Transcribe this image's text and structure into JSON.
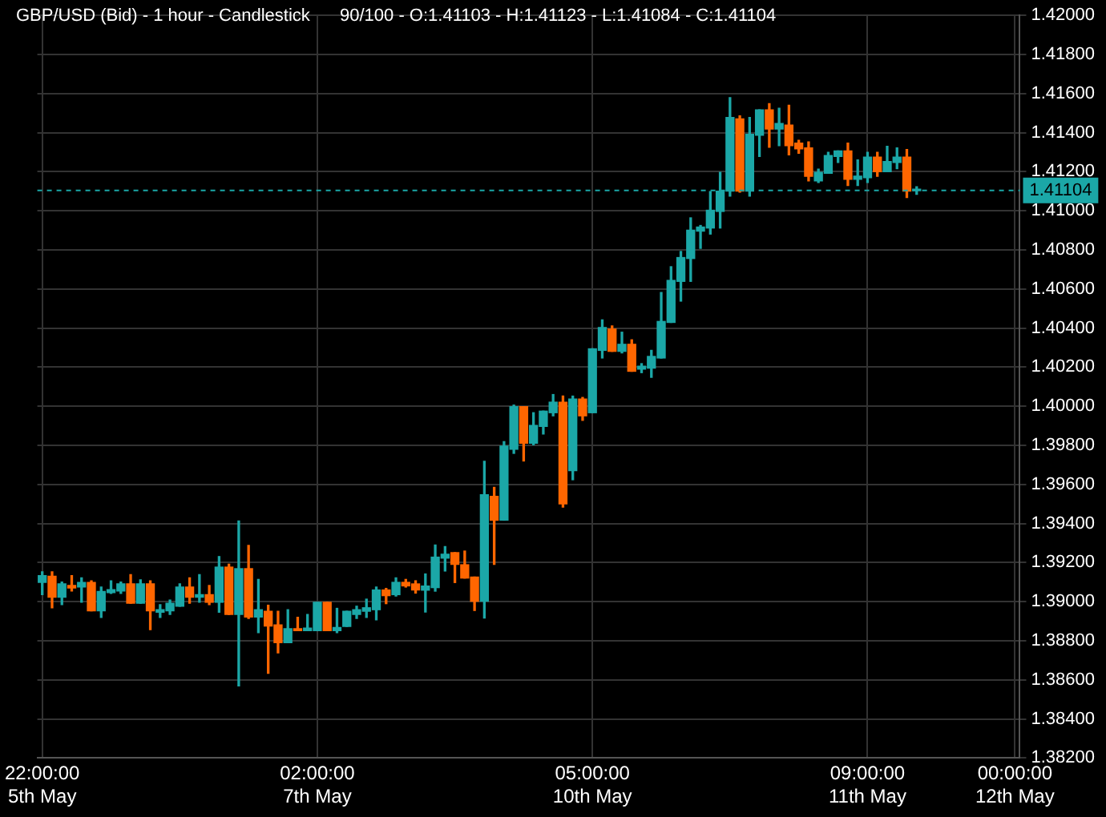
{
  "chart_data": {
    "type": "candlestick",
    "title": "GBP/USD (Bid) - 1 hour - Candlestick",
    "subtitle": "90/100 - O:1.41103 - H:1.41123 - L:1.41084 - C:1.41104",
    "categories": [
      "22:00:00\n5th May",
      null,
      null,
      null,
      null,
      null,
      null,
      null,
      null,
      null,
      null,
      null,
      null,
      null,
      null,
      null,
      null,
      null,
      null,
      null,
      null,
      null,
      null,
      null,
      null,
      null,
      null,
      null,
      "02:00:00\n7th May",
      null,
      null,
      null,
      null,
      null,
      null,
      null,
      null,
      null,
      null,
      null,
      null,
      null,
      null,
      null,
      null,
      null,
      null,
      null,
      null,
      null,
      null,
      null,
      null,
      null,
      null,
      null,
      "05:00:00\n10th May",
      null,
      null,
      null,
      null,
      null,
      null,
      null,
      null,
      null,
      null,
      null,
      null,
      null,
      null,
      null,
      null,
      null,
      null,
      null,
      null,
      null,
      null,
      null,
      null,
      null,
      null,
      null,
      "09:00:00\n11th May",
      null,
      null,
      null,
      null,
      null,
      null,
      null,
      null,
      null,
      null,
      null,
      null,
      null,
      null,
      "00:00:00\n12th May"
    ],
    "ohlc": [
      [
        1.39099,
        1.39153,
        1.39036,
        1.39133
      ],
      [
        1.3913,
        1.39153,
        1.38969,
        1.39023
      ],
      [
        1.39023,
        1.39101,
        1.38985,
        1.39091
      ],
      [
        1.39083,
        1.39133,
        1.39055,
        1.3907
      ],
      [
        1.39075,
        1.39122,
        1.38997,
        1.39099
      ],
      [
        1.39099,
        1.39107,
        1.38953,
        1.38953
      ],
      [
        1.38953,
        1.39075,
        1.3892,
        1.39052
      ],
      [
        1.39047,
        1.39107,
        1.39042,
        1.39062
      ],
      [
        1.39055,
        1.39101,
        1.39042,
        1.39091
      ],
      [
        1.39091,
        1.39138,
        1.38992,
        1.38992
      ],
      [
        1.38992,
        1.39112,
        1.38992,
        1.39091
      ],
      [
        1.39091,
        1.39107,
        1.38857,
        1.38953
      ],
      [
        1.38946,
        1.38985,
        1.3892,
        1.38959
      ],
      [
        1.38953,
        1.39008,
        1.38935,
        1.38992
      ],
      [
        1.38977,
        1.39091,
        1.38977,
        1.39075
      ],
      [
        1.39075,
        1.39122,
        1.38992,
        1.39023
      ],
      [
        1.39023,
        1.39138,
        1.38997,
        1.39036
      ],
      [
        1.39036,
        1.39083,
        1.38985,
        1.38997
      ],
      [
        1.38997,
        1.39231,
        1.38946,
        1.39177
      ],
      [
        1.39177,
        1.39192,
        1.38935,
        1.38935
      ],
      [
        1.38935,
        1.39413,
        1.38569,
        1.39169
      ],
      [
        1.39169,
        1.39288,
        1.38914,
        1.38922
      ],
      [
        1.38922,
        1.39114,
        1.38842,
        1.38959
      ],
      [
        1.38951,
        1.38982,
        1.38634,
        1.38875
      ],
      [
        1.38881,
        1.38951,
        1.38738,
        1.3879
      ],
      [
        1.3879,
        1.38959,
        1.3879,
        1.38862
      ],
      [
        1.38862,
        1.3892,
        1.38852,
        1.38852
      ],
      [
        1.38852,
        1.38935,
        1.38852,
        1.38865
      ],
      [
        1.38852,
        1.38997,
        1.38852,
        1.38997
      ],
      [
        1.38997,
        1.38997,
        1.38852,
        1.38852
      ],
      [
        1.38852,
        1.38966,
        1.38842,
        1.38868
      ],
      [
        1.38873,
        1.38951,
        1.38873,
        1.38951
      ],
      [
        1.38935,
        1.38977,
        1.38914,
        1.38959
      ],
      [
        1.38951,
        1.39013,
        1.3892,
        1.38969
      ],
      [
        1.38959,
        1.39075,
        1.38907,
        1.3906
      ],
      [
        1.3906,
        1.39068,
        1.3899,
        1.39031
      ],
      [
        1.39036,
        1.39122,
        1.39029,
        1.39099
      ],
      [
        1.39099,
        1.39114,
        1.39075,
        1.39081
      ],
      [
        1.39091,
        1.39107,
        1.39044,
        1.3906
      ],
      [
        1.39059,
        1.39142,
        1.38947,
        1.3908
      ],
      [
        1.39072,
        1.3929,
        1.39054,
        1.39228
      ],
      [
        1.39223,
        1.39282,
        1.39157,
        1.39243
      ],
      [
        1.39251,
        1.39251,
        1.39098,
        1.39191
      ],
      [
        1.39189,
        1.39259,
        1.39121,
        1.39121
      ],
      [
        1.39126,
        1.39126,
        1.38955,
        1.39002
      ],
      [
        1.39002,
        1.39718,
        1.38916,
        1.39547
      ],
      [
        1.39539,
        1.39585,
        1.39191,
        1.39417
      ],
      [
        1.39417,
        1.39819,
        1.39417,
        1.39796
      ],
      [
        1.3978,
        1.40006,
        1.39759,
        1.39998
      ],
      [
        1.39998,
        1.39998,
        1.3972,
        1.39811
      ],
      [
        1.39811,
        1.39967,
        1.39803,
        1.39902
      ],
      [
        1.39897,
        1.39975,
        1.39858,
        1.39975
      ],
      [
        1.39967,
        1.4006,
        1.39951,
        1.40021
      ],
      [
        1.40021,
        1.40052,
        1.39484,
        1.395
      ],
      [
        1.39671,
        1.40052,
        1.39624,
        1.40037
      ],
      [
        1.40037,
        1.40045,
        1.39928,
        1.39951
      ],
      [
        1.39967,
        1.40294,
        1.39967,
        1.40294
      ],
      [
        1.40286,
        1.40442,
        1.40247,
        1.40403
      ],
      [
        1.40395,
        1.40411,
        1.40281,
        1.40281
      ],
      [
        1.40281,
        1.40379,
        1.40273,
        1.40317
      ],
      [
        1.40317,
        1.4034,
        1.40179,
        1.40179
      ],
      [
        1.4019,
        1.40218,
        1.40172,
        1.40205
      ],
      [
        1.40195,
        1.40286,
        1.40148,
        1.40255
      ],
      [
        1.40247,
        1.40582,
        1.40247,
        1.40434
      ],
      [
        1.40429,
        1.40714,
        1.40429,
        1.40644
      ],
      [
        1.40639,
        1.40792,
        1.40538,
        1.40761
      ],
      [
        1.40756,
        1.40964,
        1.40639,
        1.40901
      ],
      [
        1.40896,
        1.40925,
        1.40808,
        1.40917
      ],
      [
        1.40912,
        1.41099,
        1.40881,
        1.41003
      ],
      [
        1.40997,
        1.41197,
        1.40912,
        1.41101
      ],
      [
        1.41101,
        1.41579,
        1.41075,
        1.41478
      ],
      [
        1.4147,
        1.41486,
        1.41096,
        1.41101
      ],
      [
        1.41101,
        1.41478,
        1.41075,
        1.41392
      ],
      [
        1.41387,
        1.41517,
        1.41278,
        1.41517
      ],
      [
        1.41517,
        1.41548,
        1.41325,
        1.41418
      ],
      [
        1.41418,
        1.41525,
        1.41333,
        1.41447
      ],
      [
        1.41439,
        1.4154,
        1.41286,
        1.41333
      ],
      [
        1.41346,
        1.41361,
        1.41294,
        1.41317
      ],
      [
        1.41322,
        1.41353,
        1.41153,
        1.41177
      ],
      [
        1.41153,
        1.41213,
        1.41145,
        1.41197
      ],
      [
        1.41192,
        1.41299,
        1.41192,
        1.41283
      ],
      [
        1.41278,
        1.41307,
        1.41247,
        1.41307
      ],
      [
        1.41307,
        1.41346,
        1.4113,
        1.41161
      ],
      [
        1.41161,
        1.4126,
        1.4113,
        1.41177
      ],
      [
        1.41169,
        1.41299,
        1.41145,
        1.41275
      ],
      [
        1.41275,
        1.41299,
        1.41177,
        1.412
      ],
      [
        1.412,
        1.4133,
        1.412,
        1.41252
      ],
      [
        1.41247,
        1.41322,
        1.41216,
        1.41275
      ],
      [
        1.41275,
        1.41314,
        1.41068,
        1.41101
      ],
      [
        1.41103,
        1.41123,
        1.41084,
        1.41104
      ],
      null,
      null,
      null,
      null,
      null,
      null,
      null,
      null,
      null,
      null
    ],
    "colors": [
      "#1ba7a7",
      "#ff6600",
      "#1ba7a7",
      "#ff6600",
      "#1ba7a7",
      "#ff6600",
      "#1ba7a7",
      "#1ba7a7",
      "#1ba7a7",
      "#ff6600",
      "#1ba7a7",
      "#ff6600",
      "#1ba7a7",
      "#1ba7a7",
      "#1ba7a7",
      "#ff6600",
      "#1ba7a7",
      "#ff6600",
      "#1ba7a7",
      "#ff6600",
      "#1ba7a7",
      "#ff6600",
      "#1ba7a7",
      "#ff6600",
      "#ff6600",
      "#1ba7a7",
      "#ff6600",
      "#1ba7a7",
      "#1ba7a7",
      "#ff6600",
      "#1ba7a7",
      "#1ba7a7",
      "#1ba7a7",
      "#1ba7a7",
      "#1ba7a7",
      "#ff6600",
      "#1ba7a7",
      "#ff6600",
      "#ff6600",
      "#1ba7a7",
      "#1ba7a7",
      "#1ba7a7",
      "#ff6600",
      "#ff6600",
      "#ff6600",
      "#1ba7a7",
      "#ff6600",
      "#1ba7a7",
      "#1ba7a7",
      "#ff6600",
      "#1ba7a7",
      "#1ba7a7",
      "#1ba7a7",
      "#ff6600",
      "#1ba7a7",
      "#ff6600",
      "#1ba7a7",
      "#1ba7a7",
      "#ff6600",
      "#1ba7a7",
      "#ff6600",
      "#1ba7a7",
      "#1ba7a7",
      "#1ba7a7",
      "#1ba7a7",
      "#1ba7a7",
      "#1ba7a7",
      "#1ba7a7",
      "#1ba7a7",
      "#1ba7a7",
      "#1ba7a7",
      "#ff6600",
      "#1ba7a7",
      "#1ba7a7",
      "#ff6600",
      "#1ba7a7",
      "#ff6600",
      "#ff6600",
      "#ff6600",
      "#1ba7a7",
      "#1ba7a7",
      "#1ba7a7",
      "#ff6600",
      "#1ba7a7",
      "#1ba7a7",
      "#ff6600",
      "#1ba7a7",
      "#1ba7a7",
      "#ff6600",
      "#1ba7a7",
      null,
      null,
      null,
      null,
      null,
      null,
      null,
      null,
      null,
      null
    ],
    "ylim": [
      1.382,
      1.42
    ],
    "yticks": [
      {
        "value": 1.382,
        "label": "1.38200"
      },
      {
        "value": 1.384,
        "label": "1.38400"
      },
      {
        "value": 1.386,
        "label": "1.38600"
      },
      {
        "value": 1.388,
        "label": "1.38800"
      },
      {
        "value": 1.39,
        "label": "1.39000"
      },
      {
        "value": 1.392,
        "label": "1.39200"
      },
      {
        "value": 1.394,
        "label": "1.39400"
      },
      {
        "value": 1.396,
        "label": "1.39600"
      },
      {
        "value": 1.398,
        "label": "1.39800"
      },
      {
        "value": 1.4,
        "label": "1.40000"
      },
      {
        "value": 1.402,
        "label": "1.40200"
      },
      {
        "value": 1.404,
        "label": "1.40400"
      },
      {
        "value": 1.406,
        "label": "1.40600"
      },
      {
        "value": 1.408,
        "label": "1.40800"
      },
      {
        "value": 1.41,
        "label": "1.41000"
      },
      {
        "value": 1.412,
        "label": "1.41200"
      },
      {
        "value": 1.414,
        "label": "1.41400"
      },
      {
        "value": 1.416,
        "label": "1.41600"
      },
      {
        "value": 1.418,
        "label": "1.41800"
      },
      {
        "value": 1.42,
        "label": "1.42000"
      }
    ],
    "ref_lines": [
      {
        "axis": "y",
        "value": 1.41104,
        "label": "1.41104",
        "color": "#1ba7a7",
        "line_style": "dashed"
      }
    ],
    "grid": true,
    "legend": false
  }
}
